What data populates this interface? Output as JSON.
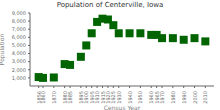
{
  "chart_data": {
    "type": "scatter",
    "title": "Population of Centerville, Iowa",
    "x_label": "Census Year",
    "y_label": "Population",
    "x": [
      1856,
      1860,
      1870,
      1880,
      1885,
      1895,
      1900,
      1905,
      1910,
      1915,
      1920,
      1925,
      1930,
      1940,
      1950,
      1960,
      1965,
      1970,
      1980,
      1990,
      2000,
      2010
    ],
    "values": [
      1100,
      1000,
      1050,
      2700,
      2600,
      3600,
      5000,
      6500,
      7900,
      8300,
      8200,
      7500,
      6500,
      6500,
      6500,
      6300,
      6300,
      5900,
      5900,
      5700,
      5900,
      5500
    ],
    "color": "#006400",
    "marker": "square",
    "xlim": [
      1848,
      2018
    ],
    "ylim": [
      0,
      9000
    ],
    "xticks": [
      1856,
      1860,
      1870,
      1880,
      1885,
      1895,
      1900,
      1905,
      1910,
      1915,
      1920,
      1925,
      1930,
      1940,
      1950,
      1960,
      1965,
      1970,
      1980,
      1990,
      2000,
      2010
    ],
    "yticks": [
      {
        "value": 1000,
        "label": "1,000"
      },
      {
        "value": 2000,
        "label": "2,000"
      },
      {
        "value": 3000,
        "label": "3,000"
      },
      {
        "value": 4000,
        "label": "4,000"
      },
      {
        "value": 5000,
        "label": "5,000"
      },
      {
        "value": 6000,
        "label": "6,000"
      },
      {
        "value": 7000,
        "label": "7,000"
      },
      {
        "value": 8000,
        "label": "8,000"
      },
      {
        "value": 9000,
        "label": "9,000"
      }
    ],
    "grid": false
  }
}
